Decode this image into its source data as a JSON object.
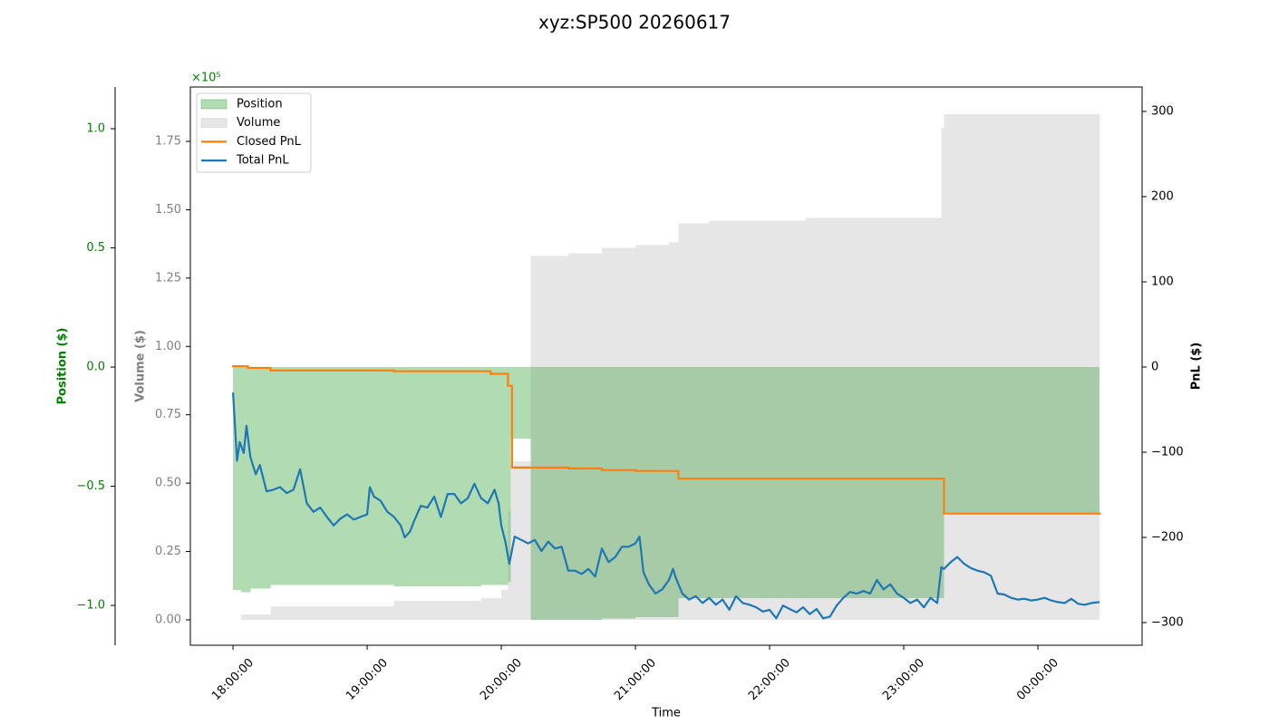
{
  "chart_data": {
    "type": "line",
    "title": "xyz:SP500 20260617",
    "xlabel": "Time",
    "xlim": [
      -0.318,
      6.777
    ],
    "xticks": [
      {
        "value": 0,
        "label": "18:00:00"
      },
      {
        "value": 1,
        "label": "19:00:00"
      },
      {
        "value": 2,
        "label": "20:00:00"
      },
      {
        "value": 3,
        "label": "21:00:00"
      },
      {
        "value": 4,
        "label": "22:00:00"
      },
      {
        "value": 5,
        "label": "23:00:00"
      },
      {
        "value": 6,
        "label": "00:00:00"
      }
    ],
    "ylabel": "Position ($)",
    "y_offset_label": "×10⁵",
    "y_color": "#008000",
    "ylim": [
      -1.167,
      1.175
    ],
    "yticks": [
      {
        "value": 1,
        "label": "1.0"
      },
      0.5,
      {
        "value": 0,
        "label": "0.0"
      },
      {
        "value": -0.5,
        "label": "−0.5"
      },
      {
        "value": -1,
        "label": "−1.0"
      }
    ],
    "y3label": "Volume ($)",
    "y3_color": "#808080",
    "y3lim": [
      -0.093,
      1.949
    ],
    "y3ticks": [
      {
        "value": 0,
        "label": "0.00"
      },
      0.25,
      {
        "value": 0.5,
        "label": "0.50"
      },
      0.75,
      {
        "value": 1,
        "label": "1.00"
      },
      1.25,
      {
        "value": 1.5,
        "label": "1.50"
      },
      1.75
    ],
    "y2label": "PnL ($)",
    "y2lim": [
      -326.6,
      328.7
    ],
    "y2ticks": [
      {
        "value": -300,
        "label": "−300"
      },
      {
        "value": -200,
        "label": "−200"
      },
      {
        "value": -100,
        "label": "−100"
      },
      0,
      100,
      200,
      300
    ],
    "legend": "upper left",
    "series": [
      {
        "name": "Position",
        "type": "area",
        "step": true,
        "axis": "y",
        "color": "rgba(44,160,44,0.37)",
        "x": [
          0,
          0.06,
          0.13,
          0.28,
          1.2,
          1.85,
          2.05,
          2.07,
          2.22,
          2.75,
          3.0,
          3.32,
          5.3,
          6.46
        ],
        "values": [
          -0.935,
          -0.945,
          -0.93,
          -0.915,
          -0.92,
          -0.915,
          -0.9,
          -0.3,
          -1.06,
          -1.055,
          -1.05,
          -0.97,
          -0.61,
          -0.61
        ]
      },
      {
        "name": "Volume",
        "type": "area",
        "step": true,
        "axis": "y3",
        "color": "rgba(128,128,128,0.2)",
        "x": [
          0,
          0.06,
          0.28,
          1.2,
          1.85,
          2.0,
          2.05,
          2.07,
          2.22,
          2.5,
          2.75,
          3.0,
          3.25,
          3.32,
          3.55,
          4.27,
          5.28,
          5.3,
          6.46
        ],
        "values": [
          0,
          0.02,
          0.05,
          0.07,
          0.08,
          0.11,
          0.4,
          0.58,
          1.33,
          1.34,
          1.36,
          1.37,
          1.38,
          1.45,
          1.46,
          1.47,
          1.8,
          1.85,
          1.85
        ]
      },
      {
        "name": "Closed PnL",
        "type": "line",
        "step": true,
        "axis": "y2",
        "color": "#ff7f0e",
        "x": [
          0,
          0.11,
          0.28,
          1.2,
          1.92,
          2.05,
          2.08,
          2.5,
          2.75,
          3.0,
          3.32,
          5.3,
          6.46
        ],
        "values": [
          1,
          -1,
          -4,
          -5,
          -8,
          -22,
          -118,
          -119,
          -121,
          -122,
          -131,
          -172,
          -172
        ]
      },
      {
        "name": "Total PnL",
        "type": "line",
        "step": false,
        "axis": "y2",
        "color": "#1f77b4",
        "x": [
          0,
          0.03,
          0.05,
          0.08,
          0.1,
          0.13,
          0.17,
          0.2,
          0.25,
          0.3,
          0.35,
          0.4,
          0.45,
          0.5,
          0.55,
          0.6,
          0.65,
          0.7,
          0.75,
          0.8,
          0.85,
          0.9,
          0.95,
          1,
          1.02,
          1.05,
          1.1,
          1.15,
          1.2,
          1.25,
          1.28,
          1.32,
          1.35,
          1.4,
          1.45,
          1.5,
          1.55,
          1.6,
          1.65,
          1.7,
          1.75,
          1.8,
          1.85,
          1.9,
          1.95,
          1.98,
          2,
          2.03,
          2.06,
          2.1,
          2.15,
          2.2,
          2.25,
          2.3,
          2.35,
          2.4,
          2.45,
          2.5,
          2.55,
          2.6,
          2.65,
          2.7,
          2.75,
          2.8,
          2.85,
          2.9,
          2.95,
          3,
          3.03,
          3.06,
          3.1,
          3.15,
          3.2,
          3.25,
          3.28,
          3.3,
          3.35,
          3.4,
          3.45,
          3.5,
          3.55,
          3.6,
          3.65,
          3.7,
          3.75,
          3.8,
          3.85,
          3.9,
          3.95,
          4,
          4.05,
          4.1,
          4.15,
          4.2,
          4.25,
          4.3,
          4.35,
          4.4,
          4.45,
          4.5,
          4.55,
          4.6,
          4.65,
          4.7,
          4.75,
          4.8,
          4.85,
          4.9,
          4.95,
          5,
          5.05,
          5.1,
          5.15,
          5.2,
          5.25,
          5.28,
          5.3,
          5.35,
          5.4,
          5.45,
          5.5,
          5.55,
          5.6,
          5.65,
          5.7,
          5.75,
          5.8,
          5.85,
          5.9,
          5.95,
          6,
          6.05,
          6.1,
          6.15,
          6.2,
          6.25,
          6.3,
          6.35,
          6.4,
          6.46
        ],
        "values": [
          -30,
          -110,
          -88,
          -101,
          -69,
          -106,
          -126,
          -115,
          -146,
          -144,
          -141,
          -148,
          -144,
          -120,
          -160,
          -170,
          -165,
          -176,
          -186,
          -178,
          -173,
          -179,
          -176,
          -173,
          -141,
          -152,
          -157,
          -170,
          -176,
          -186,
          -200,
          -193,
          -181,
          -163,
          -165,
          -152,
          -176,
          -149,
          -149,
          -160,
          -154,
          -137,
          -154,
          -160,
          -144,
          -160,
          -186,
          -205,
          -231,
          -199,
          -203,
          -207,
          -203,
          -216,
          -205,
          -213,
          -211,
          -239,
          -239,
          -243,
          -237,
          -246,
          -213,
          -229,
          -223,
          -211,
          -211,
          -207,
          -199,
          -241,
          -255,
          -266,
          -261,
          -250,
          -237,
          -247,
          -266,
          -273,
          -269,
          -277,
          -271,
          -279,
          -273,
          -285,
          -269,
          -277,
          -279,
          -282,
          -287,
          -285,
          -295,
          -280,
          -284,
          -288,
          -282,
          -290,
          -284,
          -295,
          -293,
          -280,
          -271,
          -264,
          -266,
          -263,
          -266,
          -250,
          -261,
          -255,
          -266,
          -271,
          -277,
          -273,
          -282,
          -271,
          -277,
          -235,
          -237,
          -229,
          -223,
          -231,
          -236,
          -239,
          -241,
          -245,
          -266,
          -267,
          -271,
          -273,
          -272,
          -274,
          -273,
          -271,
          -274,
          -276,
          -277,
          -272,
          -278,
          -279,
          -277,
          -276
        ]
      }
    ]
  }
}
